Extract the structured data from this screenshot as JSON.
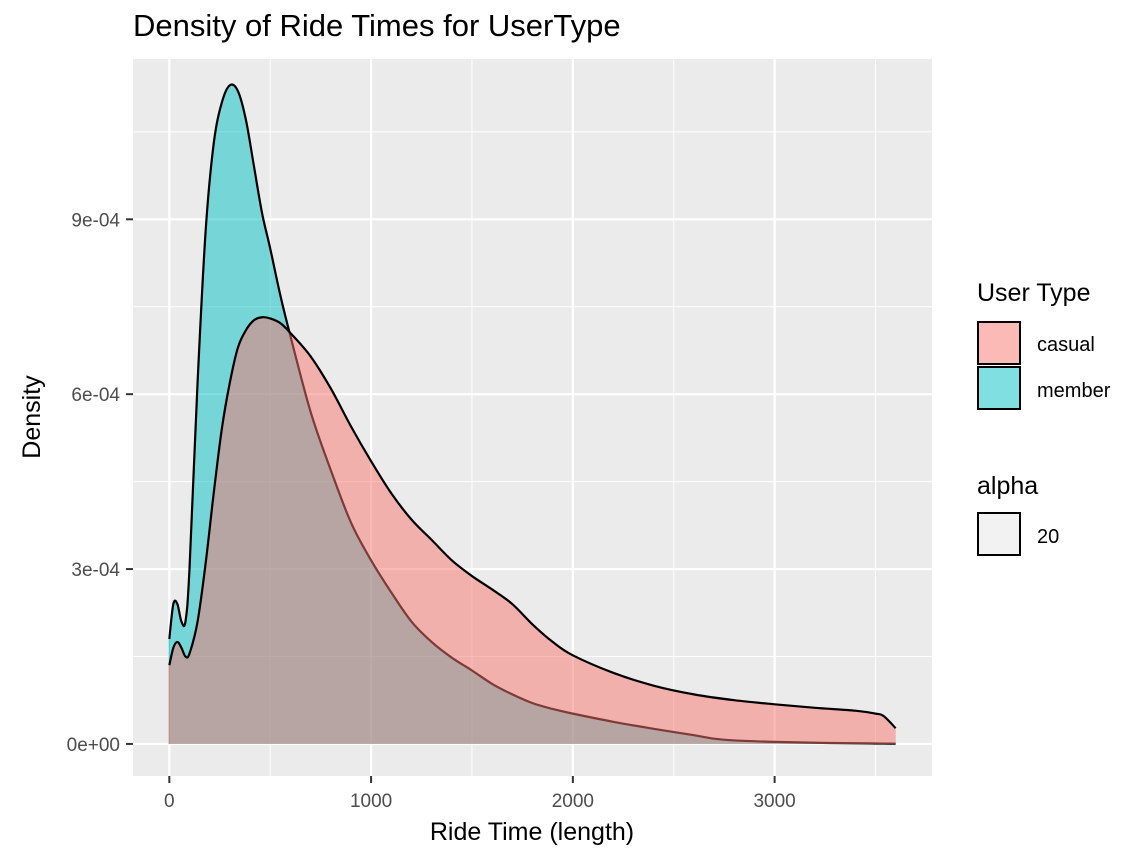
{
  "chart_data": {
    "type": "area",
    "title": "Density of  Ride Times for UserType",
    "xlabel": "Ride Time  (length)",
    "ylabel": "Density",
    "xlim": [
      -180,
      3780
    ],
    "ylim": [
      -5.5e-05,
      0.001175
    ],
    "x_ticks": [
      0,
      1000,
      2000,
      3000
    ],
    "x_tick_labels": [
      "0",
      "1000",
      "2000",
      "3000"
    ],
    "y_ticks": [
      0,
      0.0003,
      0.0006,
      0.0009
    ],
    "y_tick_labels": [
      "0e+00",
      "3e-04",
      "6e-04",
      "9e-04"
    ],
    "grid": true,
    "legend": {
      "position": "right",
      "fill_title": "User Type",
      "alpha_title": "alpha",
      "alpha_label": "20"
    },
    "series": [
      {
        "name": "member",
        "color": "#00BFC4",
        "x": [
          0,
          20,
          40,
          60,
          80,
          100,
          140,
          180,
          220,
          260,
          300,
          340,
          380,
          420,
          460,
          500,
          550,
          600,
          700,
          800,
          900,
          1000,
          1100,
          1200,
          1300,
          1400,
          1500,
          1600,
          1700,
          1800,
          1900,
          2000,
          2200,
          2400,
          2600,
          2700,
          2800,
          3000,
          3200,
          3400,
          3500,
          3600
        ],
        "values": [
          0.00018,
          0.00024,
          0.00024,
          0.00021,
          0.00021,
          0.0003,
          0.00062,
          0.00088,
          0.00103,
          0.0011,
          0.00113,
          0.00112,
          0.00107,
          0.00099,
          0.00091,
          0.00085,
          0.00077,
          0.0007,
          0.00057,
          0.00047,
          0.00038,
          0.000315,
          0.00026,
          0.00021,
          0.000175,
          0.000148,
          0.000126,
          0.000103,
          8.5e-05,
          7e-05,
          6e-05,
          5.2e-05,
          3.8e-05,
          2.6e-05,
          1.5e-05,
          9e-06,
          6e-06,
          3.5e-06,
          2e-06,
          1.2e-06,
          8e-07,
          4e-07
        ]
      },
      {
        "name": "casual",
        "color": "#F8766D",
        "x": [
          0,
          20,
          40,
          60,
          80,
          100,
          140,
          180,
          220,
          260,
          300,
          340,
          380,
          420,
          460,
          500,
          550,
          600,
          700,
          800,
          900,
          1000,
          1100,
          1200,
          1300,
          1400,
          1500,
          1600,
          1700,
          1800,
          1900,
          2000,
          2200,
          2400,
          2600,
          2800,
          3000,
          3200,
          3400,
          3500,
          3540,
          3600
        ],
        "values": [
          0.000135,
          0.000165,
          0.000175,
          0.000165,
          0.00015,
          0.000155,
          0.00021,
          0.00031,
          0.00043,
          0.00054,
          0.00062,
          0.00068,
          0.00071,
          0.000727,
          0.000732,
          0.00073,
          0.000722,
          0.000705,
          0.000665,
          0.00061,
          0.000545,
          0.000485,
          0.00043,
          0.000385,
          0.00035,
          0.000315,
          0.000288,
          0.000265,
          0.00024,
          0.000205,
          0.000175,
          0.000152,
          0.000122,
          0.0001,
          8.5e-05,
          7.5e-05,
          6.8e-05,
          6.2e-05,
          5.7e-05,
          5.2e-05,
          4.8e-05,
          2.7e-05
        ]
      }
    ]
  }
}
